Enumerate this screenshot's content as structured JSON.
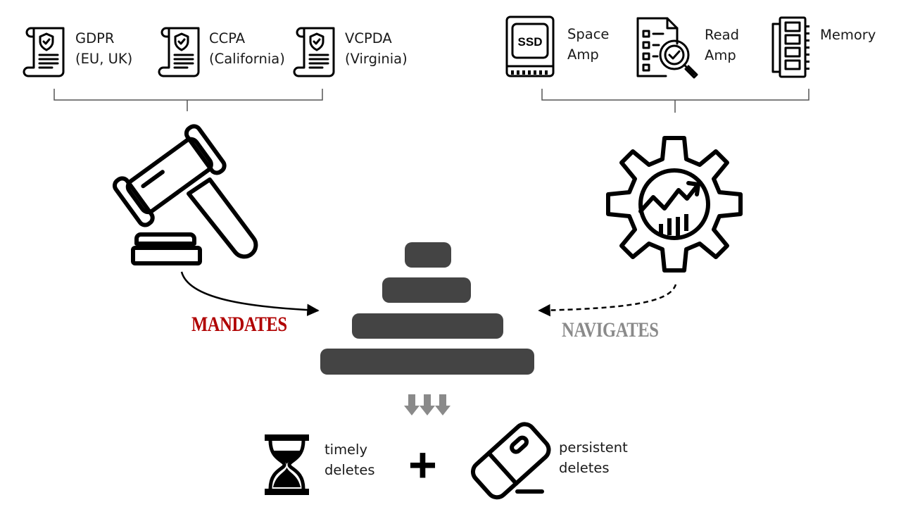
{
  "regulations": [
    {
      "name": "GDPR",
      "region": "(EU, UK)"
    },
    {
      "name": "CCPA",
      "region": "(California)"
    },
    {
      "name": "VCPDA",
      "region": "(Virginia)"
    }
  ],
  "tradeoffs": [
    {
      "line1": "Space",
      "line2": "Amp",
      "icon": "ssd-icon",
      "icon_text": "SSD"
    },
    {
      "line1": "Read",
      "line2": "Amp",
      "icon": "magnifier-checklist-icon"
    },
    {
      "line1": "Memory",
      "line2": "",
      "icon": "memory-module-icon"
    }
  ],
  "labels": {
    "mandates": "MANDATES",
    "navigates": "NAVIGATES"
  },
  "outcomes": {
    "timely_1": "timely",
    "timely_2": "deletes",
    "persistent_1": "persistent",
    "persistent_2": "deletes",
    "plus": "+"
  },
  "colors": {
    "mandates": "#b00000",
    "navigates": "#8a8a8a",
    "tree_levels": "#444444",
    "down_arrows": "#8a8a8a"
  }
}
